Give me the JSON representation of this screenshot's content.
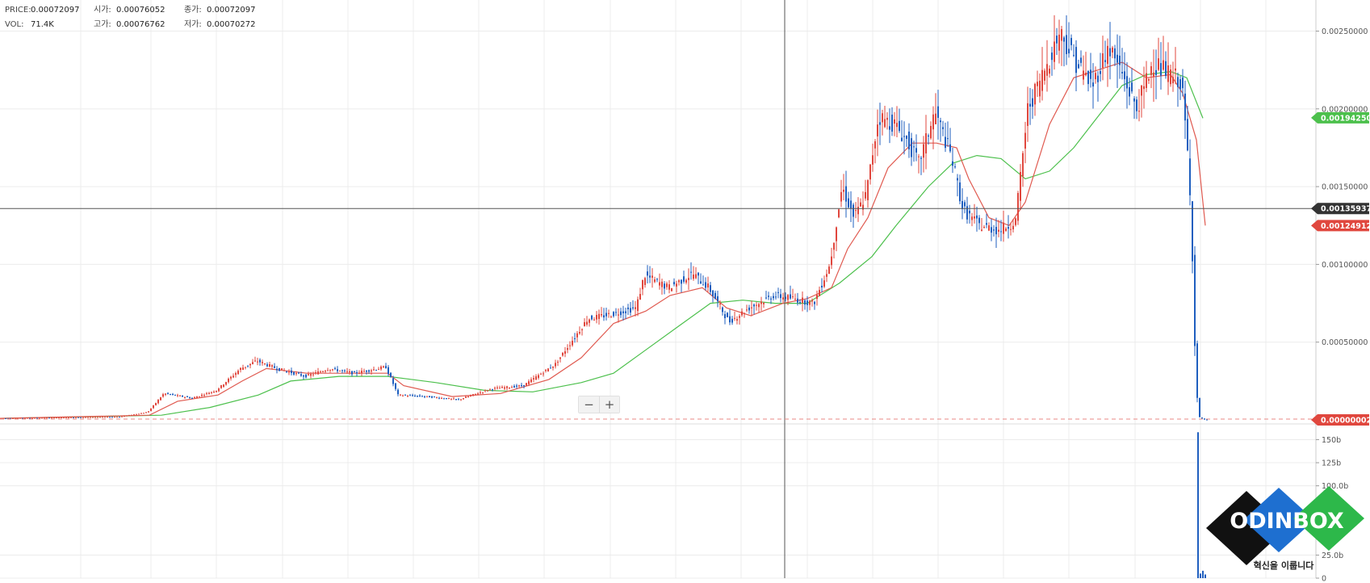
{
  "legend": {
    "price_label": "PRICE:",
    "price_value": "0.00072097",
    "vol_label": "VOL:",
    "vol_value": "71.4K",
    "open_label": "시가:",
    "open_value": "0.00076052",
    "close_label": "종가:",
    "close_value": "0.00072097",
    "high_label": "고가:",
    "high_value": "0.00076762",
    "low_label": "저가:",
    "low_value": "0.00070272"
  },
  "zoom": {
    "minus": "−",
    "plus": "+"
  },
  "logo": {
    "text": "ODINBOX",
    "slogan": "혁신을 이룹니다"
  },
  "colors": {
    "up": "#e0473e",
    "down": "#1f5fbf",
    "ma_short": "#e05a50",
    "ma_long": "#4cc04c",
    "grid": "#ececec",
    "crosshair": "#555555"
  },
  "chart_data": [
    {
      "type": "candlestick",
      "ylim": [
        0,
        0.0027
      ],
      "y_ticks": [
        {
          "value": 0.0005,
          "label": "0.00050000"
        },
        {
          "value": 0.001,
          "label": "0.00100000"
        },
        {
          "value": 0.0015,
          "label": "0.00150000"
        },
        {
          "value": 0.002,
          "label": "0.00200000"
        },
        {
          "value": 0.0025,
          "label": "0.00250000"
        }
      ],
      "price_tags": [
        {
          "value": 0.0019425,
          "label": "0.00194250",
          "color": "#4cc04c"
        },
        {
          "value": 0.00135937,
          "label": "0.00135937",
          "color": "#333333"
        },
        {
          "value": 0.00124912,
          "label": "0.00124912",
          "color": "#e0473e"
        },
        {
          "value": 2e-08,
          "label": "0.00000002",
          "color": "#e0473e"
        }
      ],
      "crosshair_price": 0.00135937,
      "current_price": 2e-08,
      "price_path": [
        [
          0,
          1e-05
        ],
        [
          150,
          2e-05
        ],
        [
          185,
          5e-05
        ],
        [
          205,
          0.00017
        ],
        [
          240,
          0.00014
        ],
        [
          270,
          0.00019
        ],
        [
          300,
          0.00033
        ],
        [
          320,
          0.00038
        ],
        [
          345,
          0.00033
        ],
        [
          380,
          0.00028
        ],
        [
          410,
          0.00033
        ],
        [
          440,
          0.0003
        ],
        [
          480,
          0.00034
        ],
        [
          495,
          0.00016
        ],
        [
          530,
          0.00015
        ],
        [
          570,
          0.00013
        ],
        [
          610,
          0.0002
        ],
        [
          650,
          0.00022
        ],
        [
          690,
          0.00036
        ],
        [
          730,
          0.00065
        ],
        [
          760,
          0.00068
        ],
        [
          790,
          0.00072
        ],
        [
          800,
          0.00093
        ],
        [
          830,
          0.00085
        ],
        [
          860,
          0.00094
        ],
        [
          880,
          0.00085
        ],
        [
          905,
          0.00063
        ],
        [
          930,
          0.00072
        ],
        [
          960,
          0.0008
        ],
        [
          985,
          0.00078
        ],
        [
          1010,
          0.00075
        ],
        [
          1030,
          0.001
        ],
        [
          1045,
          0.0015
        ],
        [
          1060,
          0.0013
        ],
        [
          1075,
          0.00145
        ],
        [
          1090,
          0.00195
        ],
        [
          1110,
          0.0019
        ],
        [
          1125,
          0.0018
        ],
        [
          1140,
          0.00165
        ],
        [
          1160,
          0.00198
        ],
        [
          1180,
          0.0017
        ],
        [
          1195,
          0.00135
        ],
        [
          1215,
          0.00125
        ],
        [
          1240,
          0.00122
        ],
        [
          1260,
          0.00128
        ],
        [
          1275,
          0.002
        ],
        [
          1300,
          0.0023
        ],
        [
          1315,
          0.0025
        ],
        [
          1335,
          0.0023
        ],
        [
          1355,
          0.00215
        ],
        [
          1375,
          0.0024
        ],
        [
          1390,
          0.00225
        ],
        [
          1410,
          0.002
        ],
        [
          1430,
          0.0023
        ],
        [
          1450,
          0.00222
        ],
        [
          1465,
          0.00218
        ],
        [
          1472,
          0.0018
        ],
        [
          1478,
          0.00125
        ],
        [
          1482,
          0.0005
        ],
        [
          1486,
          2e-05
        ],
        [
          1495,
          2e-08
        ]
      ],
      "ma_short_path": [
        [
          0,
          1e-05
        ],
        [
          185,
          3e-05
        ],
        [
          220,
          0.00012
        ],
        [
          270,
          0.00016
        ],
        [
          300,
          0.00025
        ],
        [
          330,
          0.00033
        ],
        [
          380,
          0.0003
        ],
        [
          440,
          0.0003
        ],
        [
          480,
          0.0003
        ],
        [
          500,
          0.00022
        ],
        [
          560,
          0.00015
        ],
        [
          620,
          0.00017
        ],
        [
          680,
          0.00026
        ],
        [
          720,
          0.0004
        ],
        [
          760,
          0.00062
        ],
        [
          800,
          0.0007
        ],
        [
          830,
          0.0008
        ],
        [
          870,
          0.00085
        ],
        [
          900,
          0.00072
        ],
        [
          930,
          0.00067
        ],
        [
          970,
          0.00075
        ],
        [
          1000,
          0.00078
        ],
        [
          1030,
          0.00085
        ],
        [
          1050,
          0.0011
        ],
        [
          1075,
          0.0013
        ],
        [
          1100,
          0.00162
        ],
        [
          1130,
          0.00178
        ],
        [
          1160,
          0.00178
        ],
        [
          1185,
          0.00175
        ],
        [
          1200,
          0.00155
        ],
        [
          1225,
          0.0013
        ],
        [
          1250,
          0.00125
        ],
        [
          1270,
          0.0014
        ],
        [
          1300,
          0.0019
        ],
        [
          1330,
          0.0022
        ],
        [
          1360,
          0.00225
        ],
        [
          1390,
          0.0023
        ],
        [
          1420,
          0.0022
        ],
        [
          1450,
          0.00222
        ],
        [
          1465,
          0.0021
        ],
        [
          1482,
          0.0018
        ],
        [
          1493,
          0.00125
        ]
      ],
      "ma_long_path": [
        [
          0,
          1e-05
        ],
        [
          200,
          3e-05
        ],
        [
          260,
          8e-05
        ],
        [
          320,
          0.00016
        ],
        [
          360,
          0.00025
        ],
        [
          420,
          0.00028
        ],
        [
          480,
          0.00028
        ],
        [
          540,
          0.00024
        ],
        [
          600,
          0.00019
        ],
        [
          660,
          0.00018
        ],
        [
          720,
          0.00024
        ],
        [
          760,
          0.0003
        ],
        [
          800,
          0.00045
        ],
        [
          840,
          0.0006
        ],
        [
          880,
          0.00075
        ],
        [
          920,
          0.00077
        ],
        [
          960,
          0.00075
        ],
        [
          1000,
          0.00075
        ],
        [
          1040,
          0.00088
        ],
        [
          1080,
          0.00105
        ],
        [
          1110,
          0.00125
        ],
        [
          1150,
          0.0015
        ],
        [
          1180,
          0.00165
        ],
        [
          1210,
          0.0017
        ],
        [
          1240,
          0.00168
        ],
        [
          1270,
          0.00155
        ],
        [
          1300,
          0.0016
        ],
        [
          1330,
          0.00175
        ],
        [
          1360,
          0.00195
        ],
        [
          1390,
          0.00215
        ],
        [
          1420,
          0.00222
        ],
        [
          1450,
          0.00224
        ],
        [
          1470,
          0.0022
        ],
        [
          1490,
          0.00194
        ]
      ]
    },
    {
      "type": "bar",
      "title": "",
      "ylim": [
        0,
        160
      ],
      "y_ticks": [
        {
          "value": 0,
          "label": "0"
        },
        {
          "value": 25,
          "label": "25.0b"
        },
        {
          "value": 100,
          "label": "100.0b"
        },
        {
          "value": 125,
          "label": "125b"
        },
        {
          "value": 150,
          "label": "150b"
        }
      ],
      "bars": [
        {
          "x": 1483,
          "value": 158,
          "color": "#1f5fbf"
        },
        {
          "x": 1486,
          "value": 5,
          "color": "#1f5fbf"
        },
        {
          "x": 1489,
          "value": 8,
          "color": "#1f5fbf"
        },
        {
          "x": 1492,
          "value": 4,
          "color": "#1f5fbf"
        }
      ]
    }
  ]
}
